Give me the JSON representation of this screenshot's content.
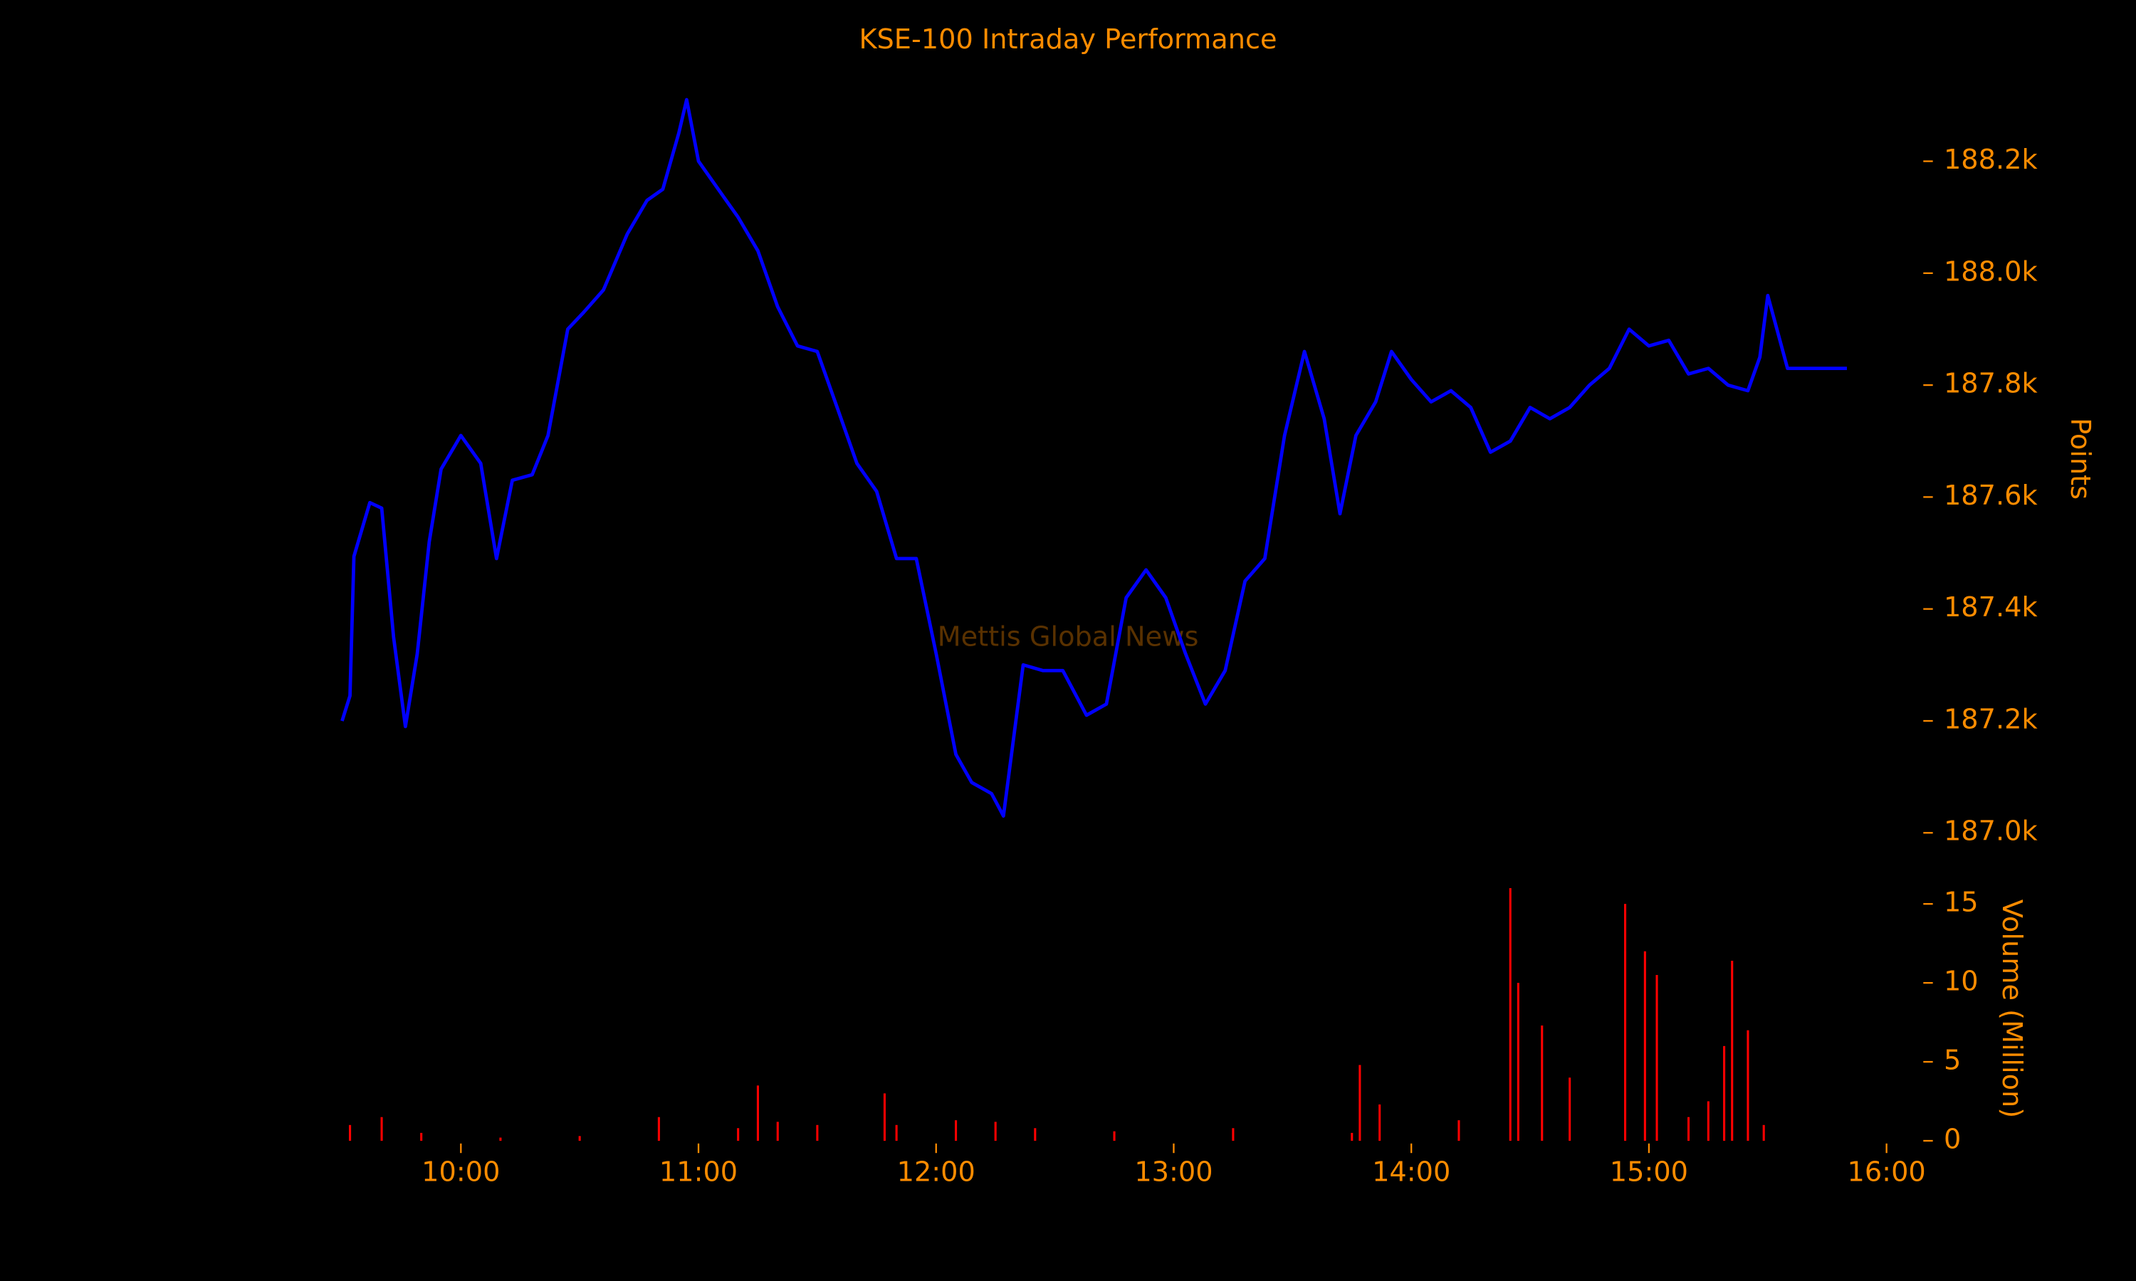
{
  "chart_data": [
    {
      "type": "line",
      "title": "KSE-100 Intraday Performance",
      "watermark": "Mettis Global News",
      "y_label": "Points",
      "text_color": "#ff8c00",
      "x": [
        "09:30",
        "09:32",
        "09:33",
        "09:37",
        "09:40",
        "09:43",
        "09:46",
        "09:49",
        "09:52",
        "09:55",
        "10:00",
        "10:05",
        "10:09",
        "10:13",
        "10:18",
        "10:22",
        "10:27",
        "10:31",
        "10:36",
        "10:42",
        "10:47",
        "10:51",
        "10:55",
        "10:57",
        "11:00",
        "11:05",
        "11:10",
        "11:15",
        "11:20",
        "11:25",
        "11:30",
        "11:35",
        "11:40",
        "11:45",
        "11:50",
        "11:55",
        "12:00",
        "12:05",
        "12:09",
        "12:14",
        "12:17",
        "12:22",
        "12:27",
        "12:32",
        "12:38",
        "12:43",
        "12:48",
        "12:53",
        "12:58",
        "13:03",
        "13:08",
        "13:13",
        "13:18",
        "13:23",
        "13:28",
        "13:33",
        "13:38",
        "13:42",
        "13:46",
        "13:51",
        "13:55",
        "14:00",
        "14:05",
        "14:10",
        "14:15",
        "14:20",
        "14:25",
        "14:30",
        "14:35",
        "14:40",
        "14:45",
        "14:50",
        "14:55",
        "15:00",
        "15:05",
        "15:10",
        "15:15",
        "15:20",
        "15:25",
        "15:28",
        "15:30",
        "15:35",
        "15:50"
      ],
      "series": [
        {
          "name": "KSE-100",
          "color": "#0000ff",
          "values": [
            187200,
            187245,
            187494,
            187590,
            187580,
            187350,
            187190,
            187320,
            187520,
            187650,
            187710,
            187660,
            187490,
            187630,
            187640,
            187710,
            187900,
            187930,
            187970,
            188070,
            188130,
            188150,
            188250,
            188310,
            188200,
            188150,
            188100,
            188040,
            187940,
            187870,
            187860,
            187760,
            187660,
            187610,
            187490,
            187490,
            187320,
            187140,
            187090,
            187070,
            187030,
            187300,
            187290,
            187290,
            187210,
            187230,
            187420,
            187470,
            187420,
            187320,
            187230,
            187290,
            187450,
            187490,
            187710,
            187860,
            187740,
            187570,
            187710,
            187770,
            187860,
            187810,
            187770,
            187790,
            187760,
            187680,
            187700,
            187760,
            187740,
            187760,
            187800,
            187830,
            187900,
            187870,
            187880,
            187820,
            187830,
            187800,
            187790,
            187850,
            187960,
            187830,
            187830
          ]
        }
      ],
      "xlim": [
        "09:30",
        "16:00"
      ],
      "ylim": [
        186980,
        188330
      ],
      "yticks": [
        {
          "value": 187000,
          "label": "187.0k"
        },
        {
          "value": 187200,
          "label": "187.2k"
        },
        {
          "value": 187400,
          "label": "187.4k"
        },
        {
          "value": 187600,
          "label": "187.6k"
        },
        {
          "value": 187800,
          "label": "187.8k"
        },
        {
          "value": 188000,
          "label": "188.0k"
        },
        {
          "value": 188200,
          "label": "188.2k"
        }
      ]
    },
    {
      "type": "bar",
      "y_label": "Volume (Million)",
      "x": [
        "09:32",
        "09:40",
        "09:50",
        "10:10",
        "10:30",
        "10:50",
        "11:10",
        "11:15",
        "11:20",
        "11:30",
        "11:47",
        "11:50",
        "12:05",
        "12:15",
        "12:25",
        "12:45",
        "13:15",
        "13:45",
        "13:47",
        "13:52",
        "14:12",
        "14:25",
        "14:27",
        "14:33",
        "14:40",
        "14:54",
        "14:59",
        "15:02",
        "15:10",
        "15:15",
        "15:19",
        "15:21",
        "15:25",
        "15:29"
      ],
      "series": [
        {
          "name": "Volume",
          "color": "#ff0000",
          "values": [
            1,
            1.5,
            0.5,
            0.2,
            0.3,
            1.5,
            0.8,
            3.5,
            1.2,
            1,
            3,
            1,
            1.3,
            1.2,
            0.8,
            0.6,
            0.8,
            0.5,
            4.8,
            2.3,
            1.3,
            16,
            10,
            7.3,
            4,
            15,
            12,
            10.5,
            1.5,
            2.5,
            6,
            11.4,
            7,
            1
          ]
        }
      ],
      "xlim": [
        "09:30",
        "16:00"
      ],
      "xticks": [
        "10:00",
        "11:00",
        "12:00",
        "13:00",
        "14:00",
        "15:00",
        "16:00"
      ],
      "ylim": [
        0,
        16.5
      ],
      "yticks": [
        0,
        5,
        10,
        15
      ]
    }
  ]
}
